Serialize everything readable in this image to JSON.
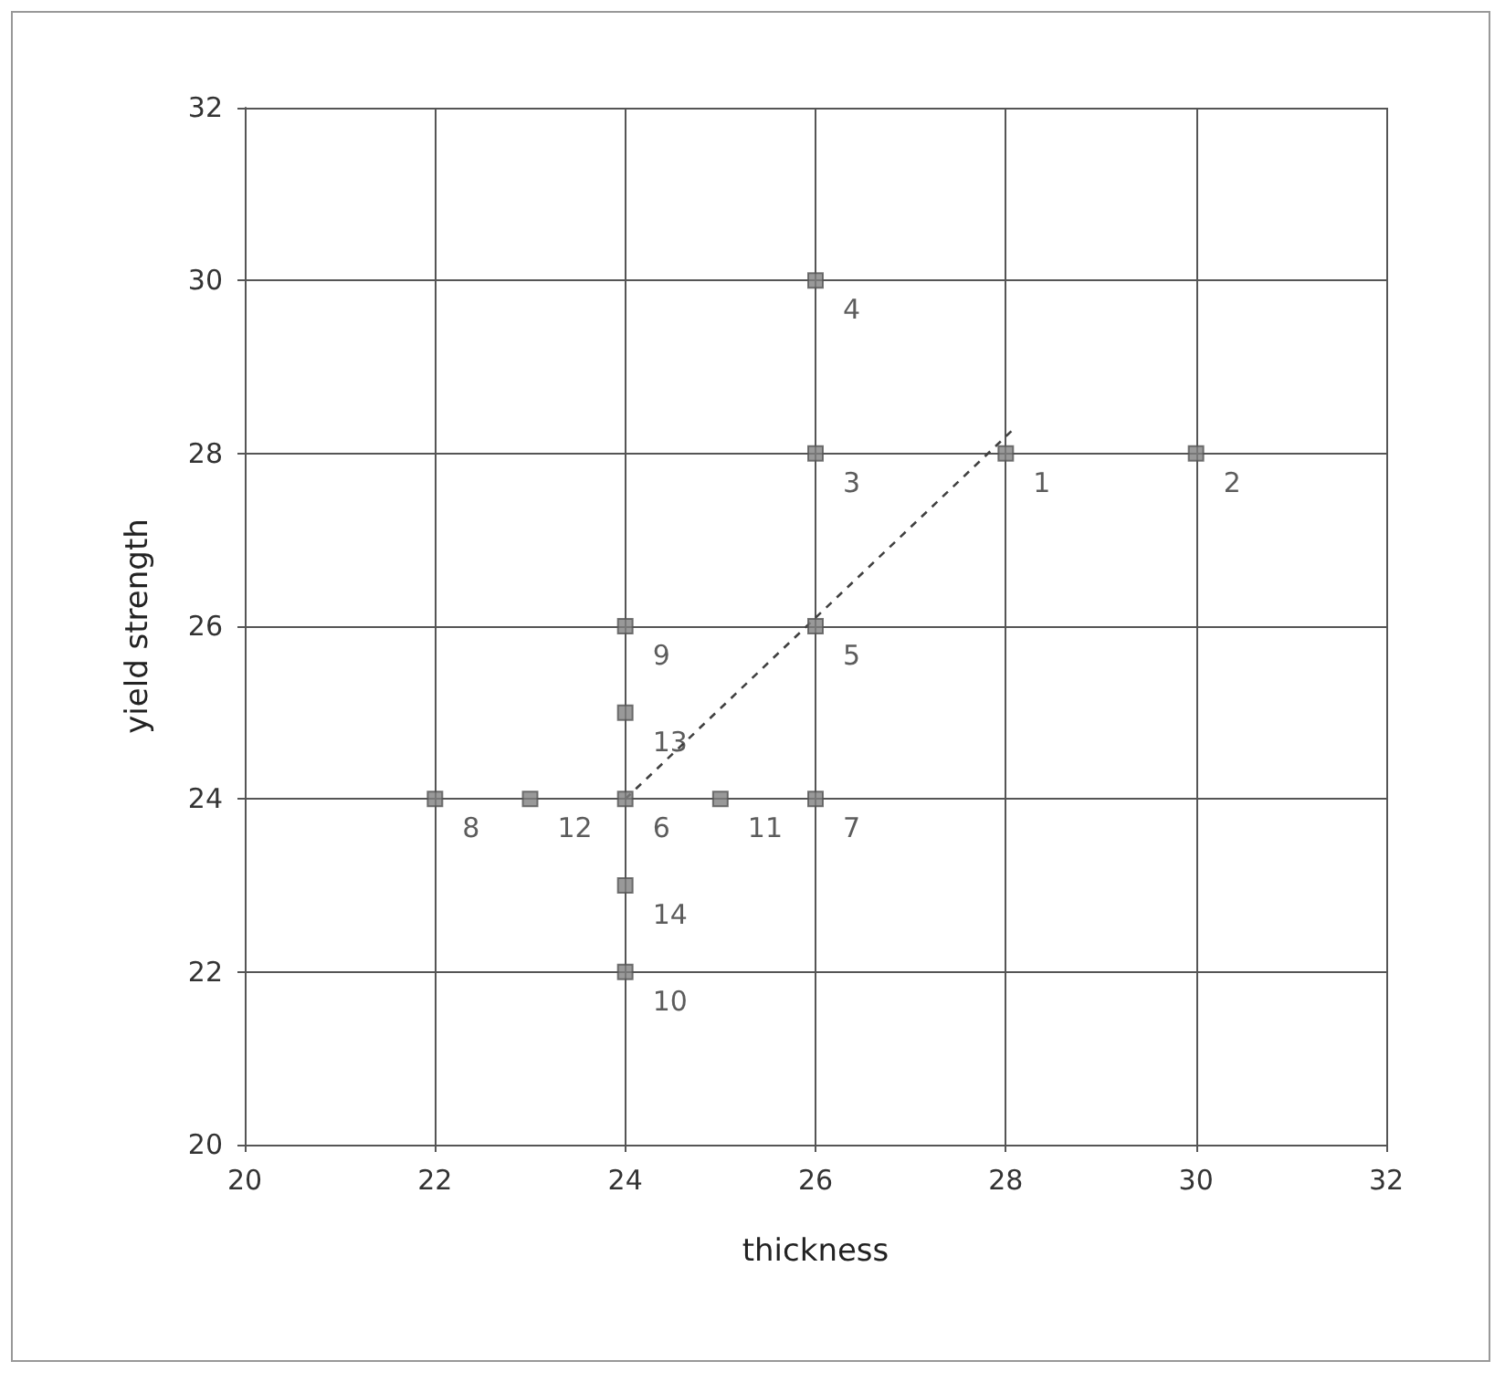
{
  "chart_data": {
    "type": "scatter",
    "xlabel": "thickness",
    "ylabel": "yield strength",
    "xlim": [
      20,
      32
    ],
    "xticks": [
      20,
      22,
      24,
      26,
      28,
      30,
      32
    ],
    "ylim": [
      20,
      32
    ],
    "yticks": [
      20,
      22,
      24,
      26,
      28,
      30,
      32
    ],
    "grid": true,
    "marker": "square",
    "series": [
      {
        "color": "#808080",
        "x": [
          28,
          30,
          26,
          26,
          26,
          24,
          26,
          22,
          24,
          24,
          25,
          23,
          24,
          24
        ],
        "values": [
          28,
          28,
          28,
          30,
          26,
          24,
          24,
          24,
          26,
          22,
          24,
          24,
          25,
          23
        ]
      },
      {
        "type": "line",
        "color": "#404040",
        "line_style": "dashed",
        "marker": "none",
        "x": [
          24,
          28.1
        ],
        "values": [
          24,
          28.3
        ]
      }
    ],
    "annotations": [
      {
        "text": "1",
        "x": 28,
        "y": 28
      },
      {
        "text": "2",
        "x": 30,
        "y": 28
      },
      {
        "text": "3",
        "x": 26,
        "y": 28
      },
      {
        "text": "4",
        "x": 26,
        "y": 30
      },
      {
        "text": "5",
        "x": 26,
        "y": 26
      },
      {
        "text": "6",
        "x": 24,
        "y": 24
      },
      {
        "text": "7",
        "x": 26,
        "y": 24
      },
      {
        "text": "8",
        "x": 22,
        "y": 24
      },
      {
        "text": "9",
        "x": 24,
        "y": 26
      },
      {
        "text": "10",
        "x": 24,
        "y": 22
      },
      {
        "text": "11",
        "x": 25,
        "y": 24
      },
      {
        "text": "12",
        "x": 23,
        "y": 24
      },
      {
        "text": "13",
        "x": 24,
        "y": 25
      },
      {
        "text": "14",
        "x": 24,
        "y": 23
      }
    ]
  }
}
